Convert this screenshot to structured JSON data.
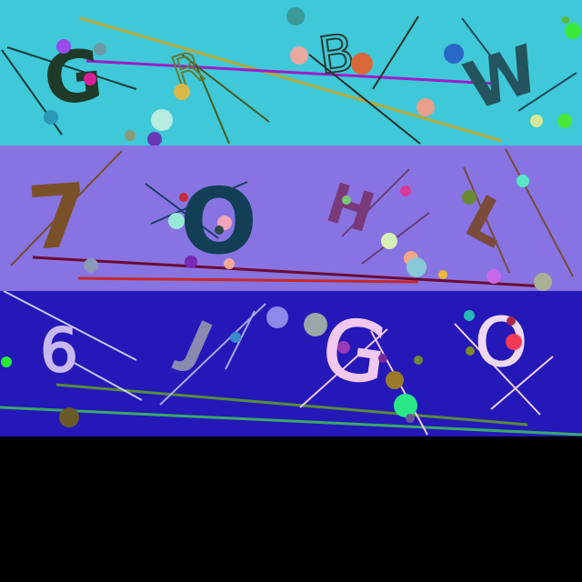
{
  "bands": [
    {
      "background": "#3ec8d8",
      "characters": [
        "G",
        "R",
        "B",
        "W"
      ]
    },
    {
      "background": "#8774e2",
      "characters": [
        "7",
        "O",
        "H",
        "L"
      ]
    },
    {
      "background": "#2418b8",
      "characters": [
        "6",
        "J",
        "G",
        "O"
      ]
    }
  ],
  "colors": {
    "below": "#000000"
  }
}
